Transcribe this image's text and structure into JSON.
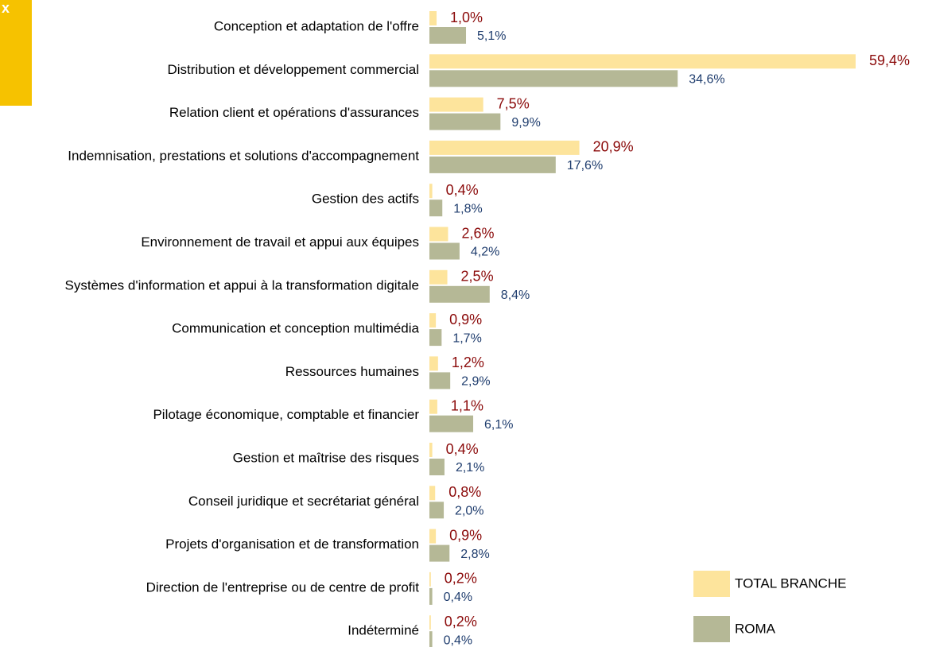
{
  "corner_label": "x",
  "chart_data": {
    "type": "hbar",
    "categories": [
      "Conception et adaptation de l'offre",
      "Distribution et développement commercial",
      "Relation client et opérations d'assurances",
      "Indemnisation, prestations et solutions d'accompagnement",
      "Gestion des actifs",
      "Environnement de travail et appui aux équipes",
      "Systèmes d'information et appui à la transformation digitale",
      "Communication et conception multimédia",
      "Ressources humaines",
      "Pilotage économique, comptable et financier",
      "Gestion et maîtrise des risques",
      "Conseil juridique et secrétariat général",
      "Projets d'organisation et de transformation",
      "Direction de l'entreprise ou de centre de profit",
      "Indéterminé"
    ],
    "series": [
      {
        "name": "TOTAL BRANCHE",
        "color": "#fde49c",
        "label_color": "#8b0a0a",
        "values": [
          1.0,
          59.4,
          7.5,
          20.9,
          0.4,
          2.6,
          2.5,
          0.9,
          1.2,
          1.1,
          0.4,
          0.8,
          0.9,
          0.2,
          0.2
        ],
        "value_labels": [
          "1,0%",
          "59,4%",
          "7,5%",
          "20,9%",
          "0,4%",
          "2,6%",
          "2,5%",
          "0,9%",
          "1,2%",
          "1,1%",
          "0,4%",
          "0,8%",
          "0,9%",
          "0,2%",
          "0,2%"
        ]
      },
      {
        "name": "ROMA",
        "color": "#b5b896",
        "label_color": "#1f3d6e",
        "values": [
          5.1,
          34.6,
          9.9,
          17.6,
          1.8,
          4.2,
          8.4,
          1.7,
          2.9,
          6.1,
          2.1,
          2.0,
          2.8,
          0.4,
          0.4
        ],
        "value_labels": [
          "5,1%",
          "34,6%",
          "9,9%",
          "17,6%",
          "1,8%",
          "4,2%",
          "8,4%",
          "1,7%",
          "2,9%",
          "6,1%",
          "2,1%",
          "2,0%",
          "2,8%",
          "0,4%",
          "0,4%"
        ]
      }
    ]
  }
}
